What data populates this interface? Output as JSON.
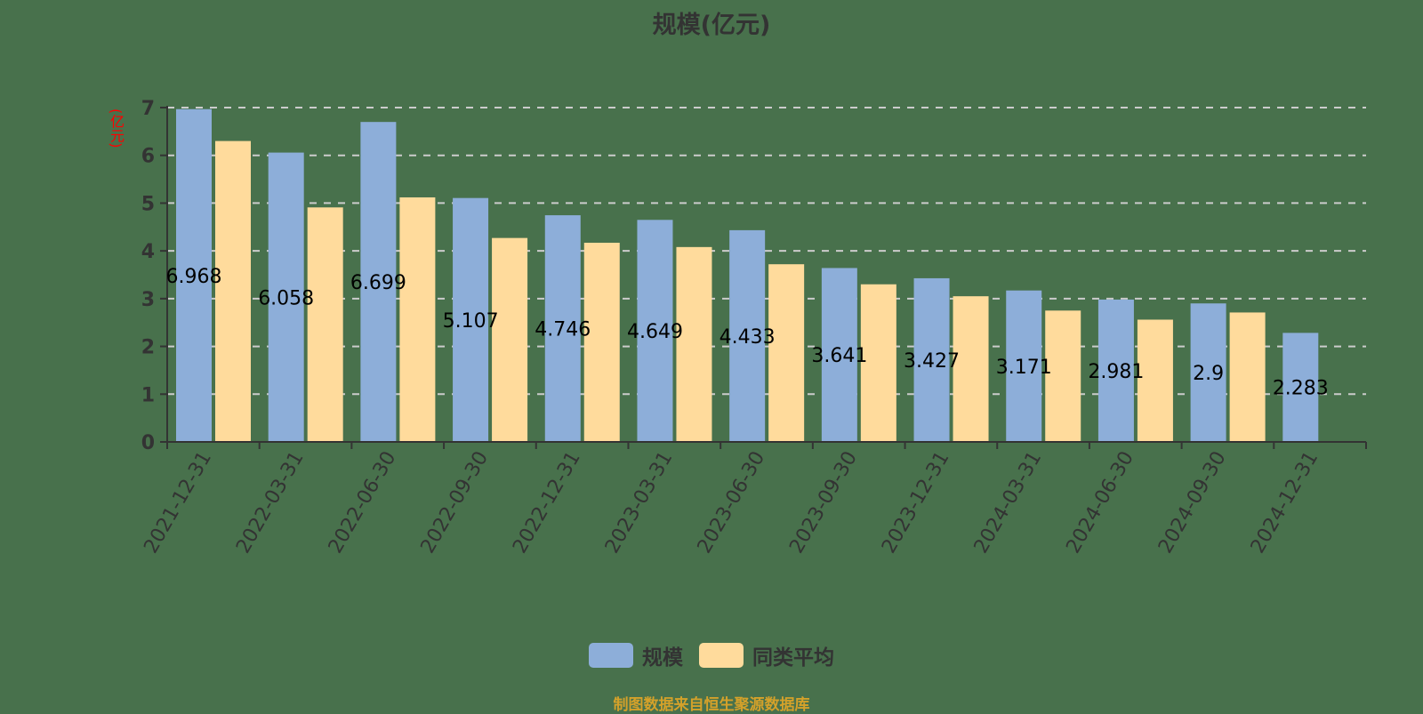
{
  "title": "规模(亿元)",
  "y_unit_label": "(亿元)",
  "legend": [
    {
      "name": "规模",
      "color": "#8daed9"
    },
    {
      "name": "同类平均",
      "color": "#ffdb9c"
    }
  ],
  "source_note": "制图数据来自恒生聚源数据库",
  "colors": {
    "background": "#48714c",
    "axis": "#333333",
    "grid": "#cccccc",
    "title": "#333333",
    "y_unit": "#ff0000",
    "source": "#d4a12a",
    "label": "#000000"
  },
  "chart_data": {
    "type": "bar",
    "title": "规模(亿元)",
    "xlabel": "",
    "ylabel": "(亿元)",
    "ylim": [
      0,
      7
    ],
    "yticks": [
      0,
      1,
      2,
      3,
      4,
      5,
      6,
      7
    ],
    "grid": true,
    "grid_style": "dashed",
    "legend_position": "bottom",
    "categories": [
      "2021-12-31",
      "2022-03-31",
      "2022-06-30",
      "2022-09-30",
      "2022-12-31",
      "2023-03-31",
      "2023-06-30",
      "2023-09-30",
      "2023-12-31",
      "2024-03-31",
      "2024-06-30",
      "2024-09-30",
      "2024-12-31"
    ],
    "series": [
      {
        "name": "规模",
        "color": "#8daed9",
        "values": [
          6.968,
          6.058,
          6.699,
          5.107,
          4.746,
          4.649,
          4.433,
          3.641,
          3.427,
          3.171,
          2.981,
          2.9,
          2.283
        ],
        "data_labels": [
          "6.968",
          "6.058",
          "6.699",
          "5.107",
          "4.746",
          "4.649",
          "4.433",
          "3.641",
          "3.427",
          "3.171",
          "2.981",
          "2.9",
          "2.283"
        ]
      },
      {
        "name": "同类平均",
        "color": "#ffdb9c",
        "values": [
          6.3,
          4.91,
          5.12,
          4.27,
          4.17,
          4.08,
          3.72,
          3.3,
          3.05,
          2.75,
          2.56,
          2.71,
          null
        ]
      }
    ]
  }
}
